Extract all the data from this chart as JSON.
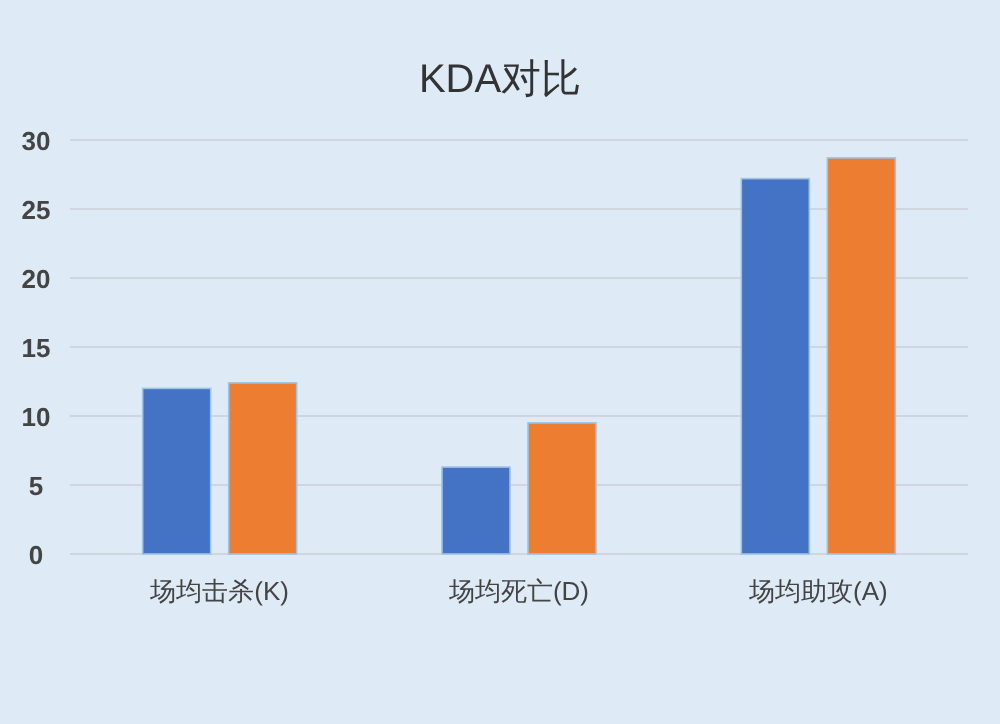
{
  "chart_data": {
    "type": "bar",
    "title": "KDA对比",
    "categories": [
      "场均击杀(K)",
      "场均死亡(D)",
      "场均助攻(A)"
    ],
    "series": [
      {
        "color": "#4472c4",
        "values": [
          12.0,
          6.3,
          27.2
        ]
      },
      {
        "color": "#ed7d31",
        "values": [
          12.4,
          9.5,
          28.7
        ]
      }
    ],
    "ylim": [
      0,
      30
    ],
    "yticks": [
      0,
      5,
      10,
      15,
      20,
      25,
      30
    ],
    "grid": "y"
  }
}
